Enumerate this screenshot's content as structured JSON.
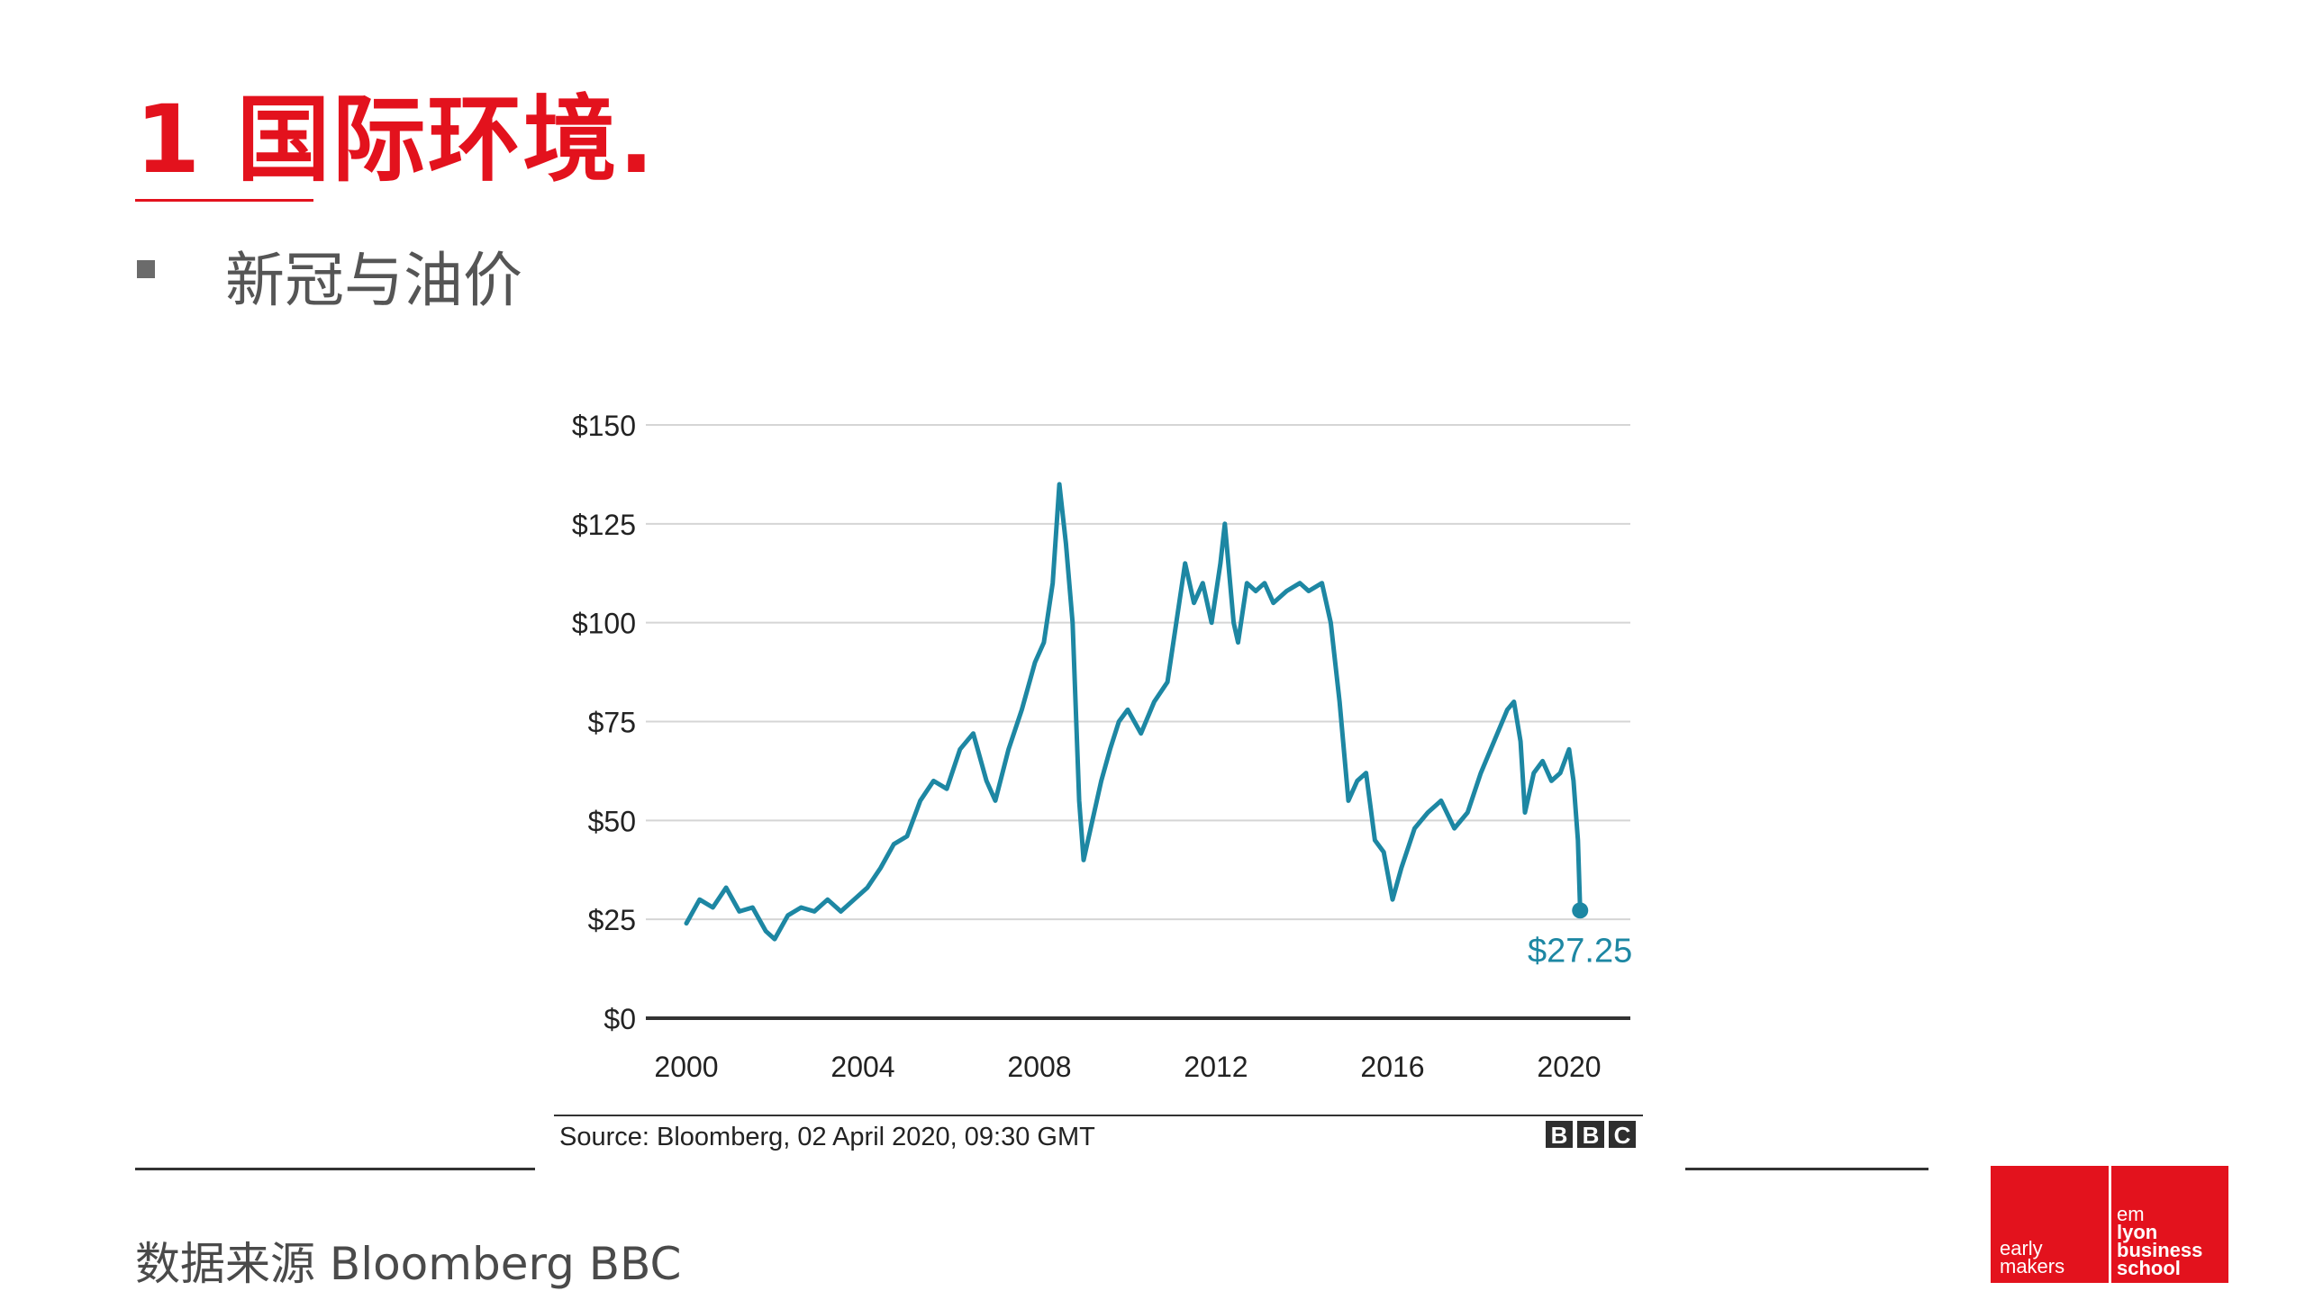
{
  "slide": {
    "title": "1 国际环境.",
    "bullet": "新冠与油价",
    "footer_note": "数据来源 Bloomberg BBC"
  },
  "logo": {
    "left_line1": "early",
    "left_line2": "makers",
    "right_line1": "em",
    "right_line2": "lyon",
    "right_line3": "business",
    "right_line4": "school"
  },
  "colors": {
    "accent": "#e3121d",
    "series": "#1d87a3"
  },
  "chart_data": {
    "type": "line",
    "title": "",
    "xlabel": "",
    "ylabel": "",
    "xlim": [
      2000,
      2020.6
    ],
    "ylim": [
      0,
      150
    ],
    "y_ticks": [
      0,
      25,
      50,
      75,
      100,
      125,
      150
    ],
    "y_tick_labels": [
      "$0",
      "$25",
      "$50",
      "$75",
      "$100",
      "$125",
      "$150"
    ],
    "x_ticks": [
      2000,
      2004,
      2008,
      2012,
      2016,
      2020
    ],
    "x_tick_labels": [
      "2000",
      "2004",
      "2008",
      "2012",
      "2016",
      "2020"
    ],
    "grid": true,
    "series": [
      {
        "name": "Oil price",
        "x": [
          2000.0,
          2000.3,
          2000.6,
          2000.9,
          2001.2,
          2001.5,
          2001.8,
          2002.0,
          2002.3,
          2002.6,
          2002.9,
          2003.2,
          2003.5,
          2003.8,
          2004.1,
          2004.4,
          2004.7,
          2005.0,
          2005.3,
          2005.6,
          2005.9,
          2006.2,
          2006.5,
          2006.8,
          2007.0,
          2007.3,
          2007.6,
          2007.9,
          2008.1,
          2008.3,
          2008.45,
          2008.6,
          2008.75,
          2008.9,
          2009.0,
          2009.2,
          2009.4,
          2009.6,
          2009.8,
          2010.0,
          2010.3,
          2010.6,
          2010.9,
          2011.1,
          2011.3,
          2011.5,
          2011.7,
          2011.9,
          2012.1,
          2012.2,
          2012.4,
          2012.5,
          2012.7,
          2012.9,
          2013.1,
          2013.3,
          2013.6,
          2013.9,
          2014.1,
          2014.4,
          2014.6,
          2014.8,
          2015.0,
          2015.2,
          2015.4,
          2015.6,
          2015.8,
          2016.0,
          2016.2,
          2016.5,
          2016.8,
          2017.1,
          2017.4,
          2017.7,
          2018.0,
          2018.3,
          2018.6,
          2018.75,
          2018.9,
          2019.0,
          2019.2,
          2019.4,
          2019.6,
          2019.8,
          2020.0,
          2020.1,
          2020.2,
          2020.25
        ],
        "values": [
          24,
          30,
          28,
          33,
          27,
          28,
          22,
          20,
          26,
          28,
          27,
          30,
          27,
          30,
          33,
          38,
          44,
          46,
          55,
          60,
          58,
          68,
          72,
          60,
          55,
          68,
          78,
          90,
          95,
          110,
          135,
          120,
          100,
          55,
          40,
          50,
          60,
          68,
          75,
          78,
          72,
          80,
          85,
          100,
          115,
          105,
          110,
          100,
          115,
          125,
          100,
          95,
          110,
          108,
          110,
          105,
          108,
          110,
          108,
          110,
          100,
          80,
          55,
          60,
          62,
          45,
          42,
          30,
          38,
          48,
          52,
          55,
          48,
          52,
          62,
          70,
          78,
          80,
          70,
          52,
          62,
          65,
          60,
          62,
          68,
          60,
          45,
          27.25
        ]
      }
    ],
    "annotation": {
      "label": "$27.25",
      "x": 2020.25,
      "y": 27.25
    },
    "source_note": "Source: Bloomberg, 02 April 2020, 09:30 GMT",
    "brand_letters": [
      "B",
      "B",
      "C"
    ]
  }
}
